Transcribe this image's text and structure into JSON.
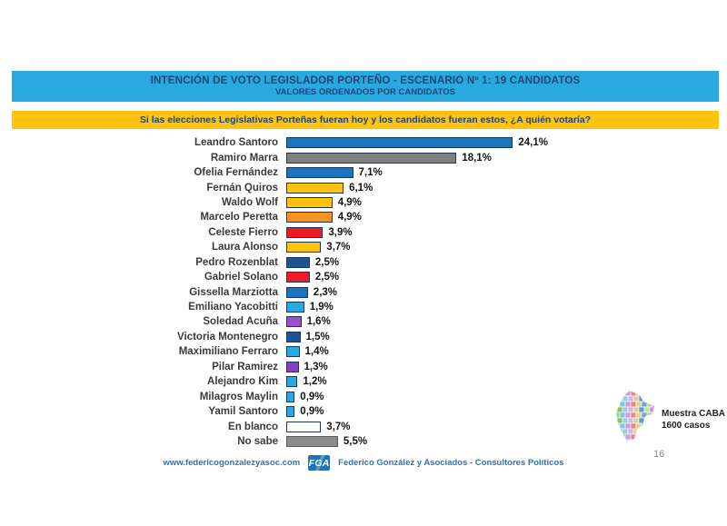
{
  "header": {
    "title": "INTENCIÓN DE VOTO LEGISLADOR PORTEÑO - ESCENARIO Nº 1: 19 CANDIDATOS",
    "subtitle": "VALORES ORDENADOS POR CANDIDATOS",
    "bg_color": "#29A9E0",
    "text_color": "#1F4576"
  },
  "question": {
    "text": "Si las elecciones Legislativas Porteñas fueran hoy y los candidatos fueran estos, ¿A quién votaría?",
    "bg_color": "#FFC20E"
  },
  "chart_data": {
    "type": "bar",
    "orientation": "horizontal",
    "title": "INTENCIÓN DE VOTO LEGISLADOR PORTEÑO - ESCENARIO Nº 1: 19 CANDIDATOS",
    "xlabel": "",
    "ylabel": "",
    "unit": "%",
    "decimal_separator": ",",
    "xlim": [
      0,
      26
    ],
    "grid": false,
    "legend": false,
    "value_label_position": "end",
    "categories": [
      "Leandro Santoro",
      "Ramiro Marra",
      "Ofelia Fernández",
      "Fernán Quiros",
      "Waldo Wolf",
      "Marcelo Peretta",
      "Celeste Fierro",
      "Laura Alonso",
      "Pedro Rozenblat",
      "Gabriel Solano",
      "Gissella Marziotta",
      "Emiliano Yacobitti",
      "Soledad Acuña",
      "Victoria Montenegro",
      "Maximiliano Ferraro",
      "Pilar Ramirez",
      "Alejandro Kim",
      "Milagros Maylin",
      "Yamil Santoro",
      "En blanco",
      "No sabe"
    ],
    "values": [
      24.1,
      18.1,
      7.1,
      6.1,
      4.9,
      4.9,
      3.9,
      3.7,
      2.5,
      2.5,
      2.3,
      1.9,
      1.6,
      1.5,
      1.4,
      1.3,
      1.2,
      0.9,
      0.9,
      3.7,
      5.5
    ],
    "value_labels": [
      "24,1%",
      "18,1%",
      "7,1%",
      "6,1%",
      "4,9%",
      "4,9%",
      "3,9%",
      "3,7%",
      "2,5%",
      "2,5%",
      "2,3%",
      "1,9%",
      "1,6%",
      "1,5%",
      "1,4%",
      "1,3%",
      "1,2%",
      "0,9%",
      "0,9%",
      "3,7%",
      "5,5%"
    ],
    "bar_colors": [
      "#1B75BC",
      "#808080",
      "#1B75BC",
      "#FFC20E",
      "#FFC20E",
      "#F7941D",
      "#ED1C24",
      "#FFC20E",
      "#1F5396",
      "#ED1C24",
      "#1B75BC",
      "#29ABE2",
      "#9950C8",
      "#1F5396",
      "#29ABE2",
      "#8C3FC0",
      "#29ABE2",
      "#29ABE2",
      "#29ABE2",
      "#FFFFFF",
      "#8C8C8C"
    ],
    "bar_border_colors": [
      "#17375E",
      "#17375E",
      "#17375E",
      "#17375E",
      "#17375E",
      "#17375E",
      "#17375E",
      "#17375E",
      "#17375E",
      "#17375E",
      "#17375E",
      "#17375E",
      "#17375E",
      "#17375E",
      "#17375E",
      "#17375E",
      "#17375E",
      "#17375E",
      "#17375E",
      "#17375E",
      "#595959"
    ]
  },
  "annotation": {
    "sample_line1": "Muestra CABA",
    "sample_line2": "1600 casos",
    "map_colors": [
      "#9FD48A",
      "#7FC4E0",
      "#C9A0DC",
      "#E08A8A",
      "#E3D291",
      "#6AA8D4",
      "#B5D69C",
      "#9673C9",
      "#D46A6A",
      "#8FBF6F",
      "#A5C8E8",
      "#D4B8E0",
      "#E8C9A0",
      "#5B9BD5",
      "#C4E0A0",
      "#CE8FD4"
    ]
  },
  "footer": {
    "website": "www.federicogonzalezyasoc.com",
    "logo_text": "FGA",
    "credit": "Federico González y Asociados - Consultores Políticos",
    "page_number": "16"
  }
}
